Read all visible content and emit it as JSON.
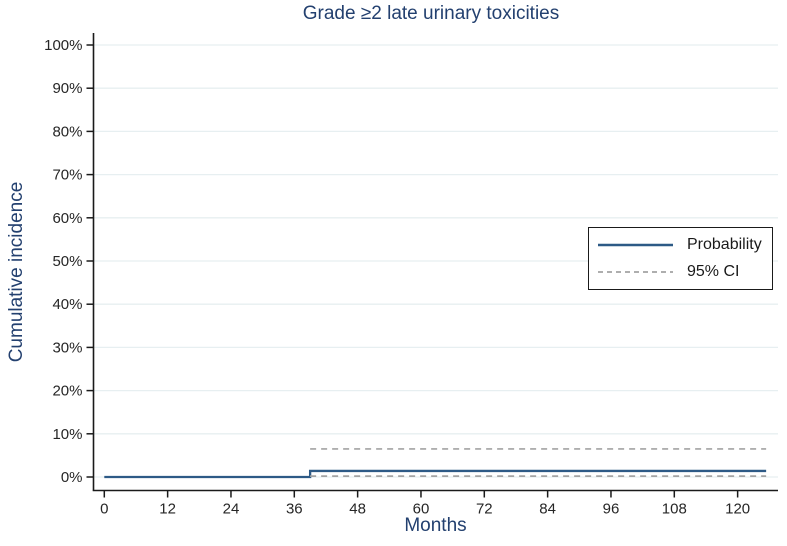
{
  "chart_data": {
    "type": "line",
    "subtype": "step-cumulative-incidence",
    "title": "Grade ≥2 late urinary toxicities",
    "xlabel": "Months",
    "ylabel": "Cumulative incidence",
    "xlim": [
      0,
      126
    ],
    "ylim": [
      0,
      100
    ],
    "grid": "horizontal",
    "legend_position": "middle-right",
    "x_ticks": [
      0,
      12,
      24,
      36,
      48,
      60,
      72,
      84,
      96,
      108,
      120
    ],
    "y_ticks": [
      {
        "value": 0,
        "label": "0%"
      },
      {
        "value": 10,
        "label": "10%"
      },
      {
        "value": 20,
        "label": "20%"
      },
      {
        "value": 30,
        "label": "30%"
      },
      {
        "value": 40,
        "label": "40%"
      },
      {
        "value": 50,
        "label": "50%"
      },
      {
        "value": 60,
        "label": "60%"
      },
      {
        "value": 70,
        "label": "70%"
      },
      {
        "value": 80,
        "label": "80%"
      },
      {
        "value": 90,
        "label": "90%"
      },
      {
        "value": 100,
        "label": "100%"
      }
    ],
    "series": [
      {
        "name": "Probability",
        "style": "solid",
        "color": "#2d5a86",
        "points": [
          [
            0,
            0
          ],
          [
            39,
            0
          ],
          [
            39,
            1.4
          ],
          [
            125.4,
            1.4
          ]
        ]
      },
      {
        "name": "95% CI upper",
        "style": "dashed",
        "color": "#a3a3a3",
        "points": [
          [
            39,
            6.5
          ],
          [
            125.4,
            6.5
          ]
        ]
      },
      {
        "name": "95% CI lower",
        "style": "dashed",
        "color": "#a3a3a3",
        "points": [
          [
            39,
            0.2
          ],
          [
            125.4,
            0.2
          ]
        ]
      }
    ],
    "legend": [
      {
        "label": "Probability",
        "style": "solid"
      },
      {
        "label": "95% CI",
        "style": "dashed"
      }
    ],
    "colors": {
      "heading_text": "#23406f",
      "probability_line": "#2d5a86",
      "ci_line": "#a3a3a3",
      "axis_line": "#1a1a1a",
      "tick_text": "#262626",
      "gridline": "#e7eff1"
    }
  }
}
